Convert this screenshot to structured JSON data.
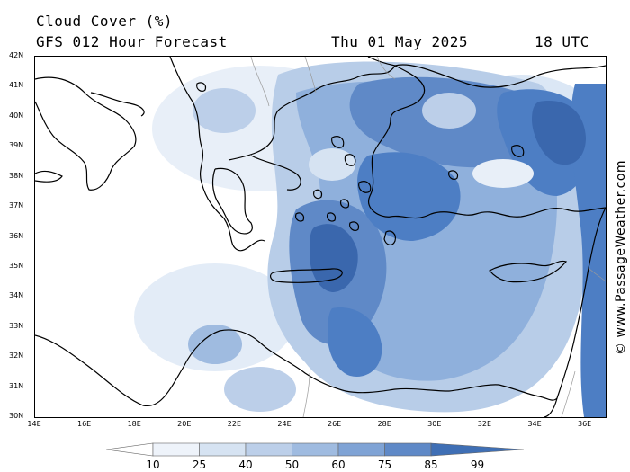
{
  "title": "Cloud Cover (%)",
  "subtitle": "GFS 012 Hour Forecast",
  "date": "Thu 01 May 2025",
  "time": "18 UTC",
  "credit": "© www.PassageWeather.com",
  "latitudes": [
    "42N",
    "41N",
    "40N",
    "39N",
    "38N",
    "37N",
    "36N",
    "35N",
    "34N",
    "33N",
    "32N",
    "31N",
    "30N"
  ],
  "longitudes": [
    "14E",
    "16E",
    "18E",
    "20E",
    "22E",
    "24E",
    "26E",
    "28E",
    "30E",
    "32E",
    "34E",
    "36E"
  ],
  "legend": {
    "labels": [
      "10",
      "25",
      "40",
      "50",
      "60",
      "75",
      "85",
      "99"
    ],
    "colors": [
      "#ffffff",
      "#eef3fa",
      "#d6e3f2",
      "#bccfe9",
      "#9fbbe0",
      "#7fa3d5",
      "#5f89c7",
      "#3f6fb5"
    ]
  },
  "colors": {
    "cloud_light": "#dbe7f5",
    "cloud_mid": "#9fbbe0",
    "cloud_dense": "#4d7ec4",
    "cloud_max": "#3a67ad"
  }
}
